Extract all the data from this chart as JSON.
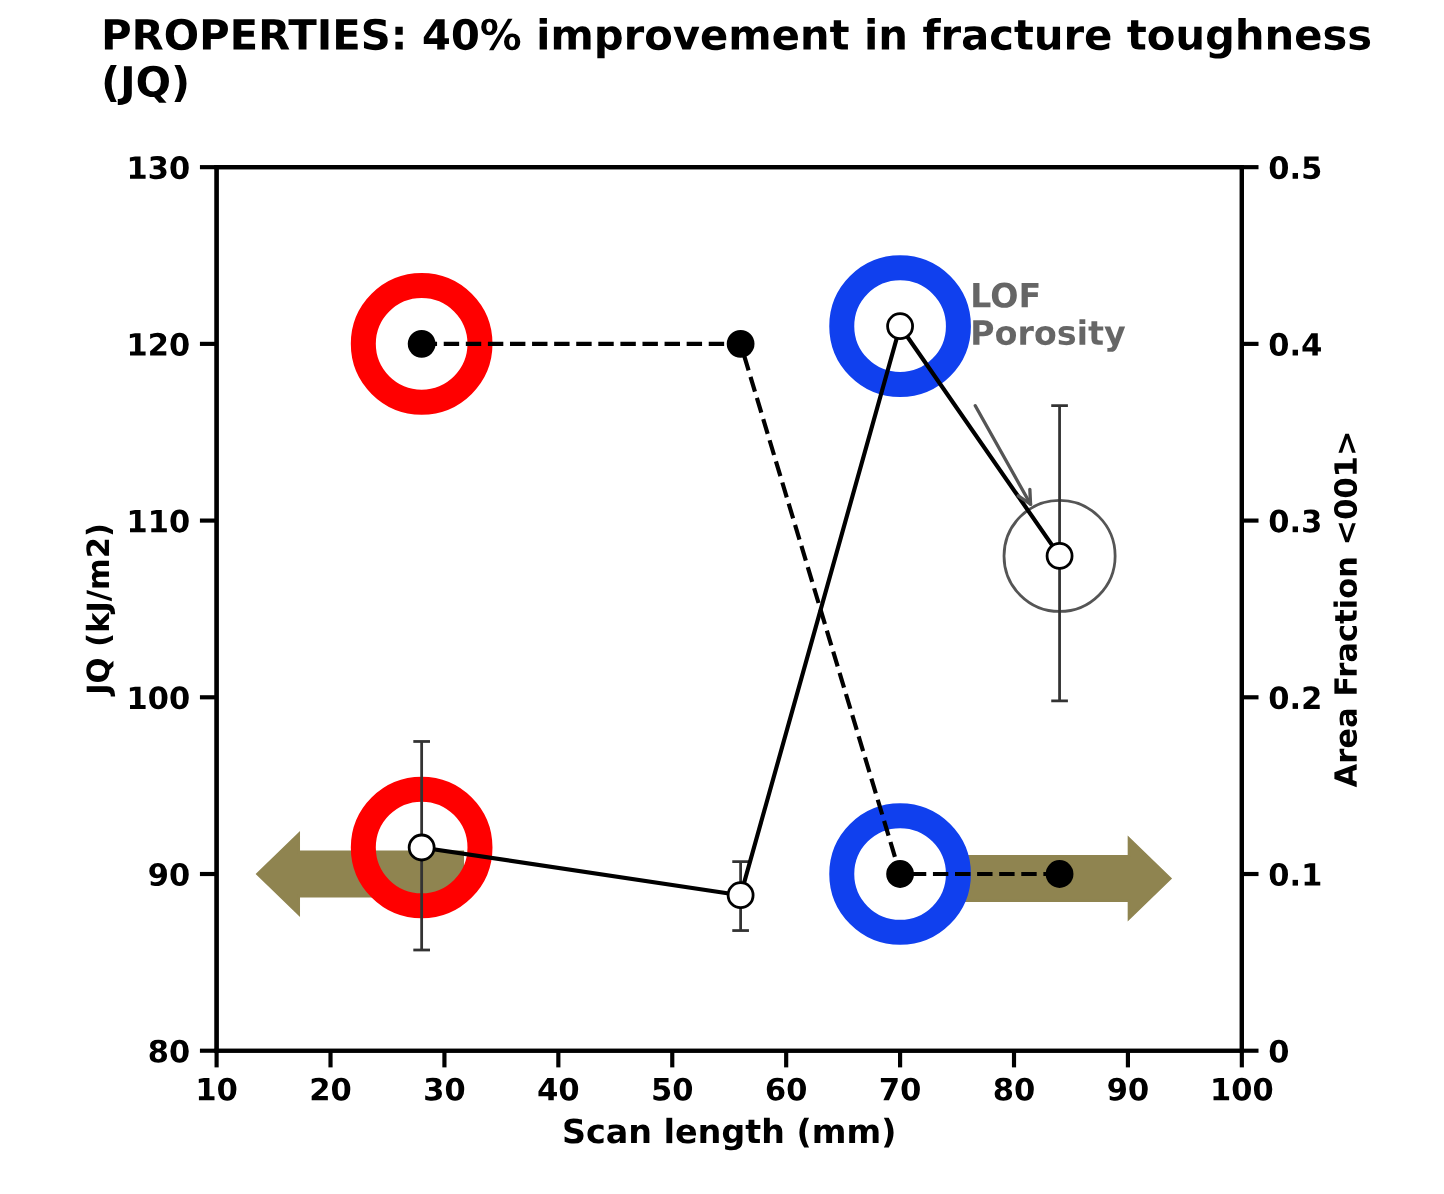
{
  "chart_data": {
    "type": "line",
    "title": "PROPERTIES: 40% improvement in fracture toughness (JQ)",
    "xlabel": "Scan length (mm)",
    "ylabel": "JQ (kJ/m2)",
    "y2label": "Area Fraction <001>",
    "x": [
      28,
      56,
      70,
      84
    ],
    "series": [
      {
        "color": "#000000",
        "values": [
          91.5,
          88.8,
          121,
          108
        ],
        "errors": [
          [
            85.7,
            97.5
          ],
          [
            86.8,
            90.7
          ],
          null,
          [
            99.8,
            116.5
          ]
        ],
        "marker": "circle",
        "line_style": "solid"
      },
      {
        "color": "#000000",
        "values": [
          0.4,
          0.4,
          0.1,
          0.1
        ],
        "axis": "y2",
        "marker": "circle",
        "line_style": "dashed"
      }
    ],
    "xlim": [
      10,
      100
    ],
    "xticks": [
      10,
      20,
      30,
      40,
      50,
      60,
      70,
      80,
      90,
      100
    ],
    "ylim": [
      80,
      130
    ],
    "yticks": [
      80,
      90,
      100,
      110,
      120,
      130
    ],
    "y2lim": [
      0,
      0.5
    ],
    "y2ticks": [
      0,
      0.1,
      0.2,
      0.3,
      0.4,
      0.5
    ],
    "annotations": [
      "LOF\nPorosity"
    ],
    "grid": false,
    "legend": false
  }
}
